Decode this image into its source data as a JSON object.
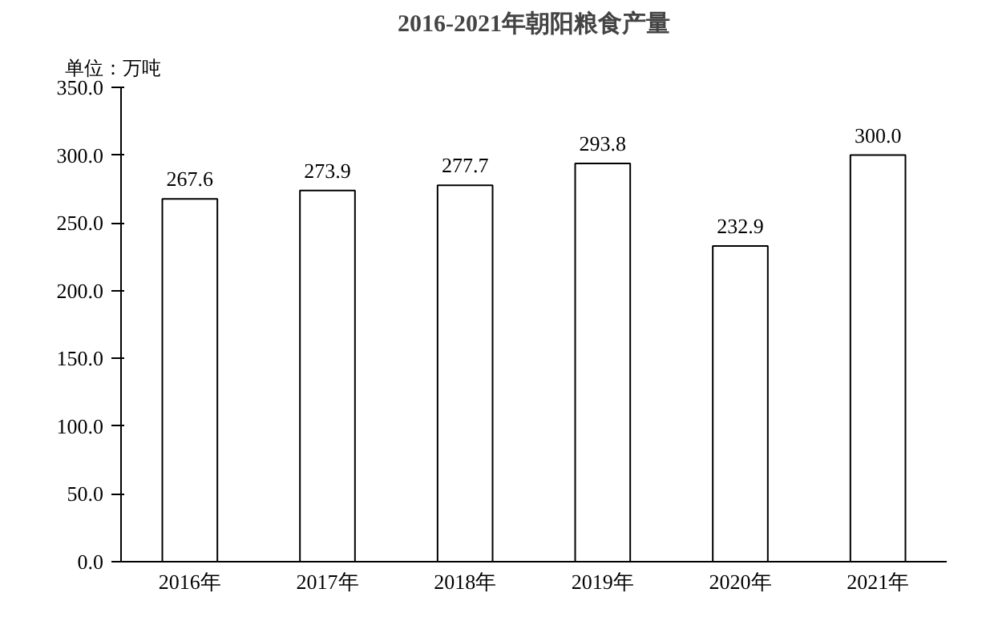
{
  "chart_data": {
    "type": "bar",
    "title": "2016-2021年朝阳粮食产量",
    "annotations": [
      "单位：万吨"
    ],
    "categories": [
      "2016年",
      "2017年",
      "2018年",
      "2019年",
      "2020年",
      "2021年"
    ],
    "values": [
      267.6,
      273.9,
      277.7,
      293.8,
      232.9,
      300.0
    ],
    "value_labels": [
      "267.6",
      "273.9",
      "277.7",
      "293.8",
      "232.9",
      "300.0"
    ],
    "color": "#ffffff",
    "ylim": [
      0,
      350
    ],
    "yticks": [
      {
        "value": 0,
        "label": "0.0"
      },
      {
        "value": 50,
        "label": "50.0"
      },
      {
        "value": 100,
        "label": "100.0"
      },
      {
        "value": 150,
        "label": "150.0"
      },
      {
        "value": 200,
        "label": "200.0"
      },
      {
        "value": 250,
        "label": "250.0"
      },
      {
        "value": 300,
        "label": "300.0"
      },
      {
        "value": 350,
        "label": "350.0"
      }
    ],
    "grid": false
  }
}
